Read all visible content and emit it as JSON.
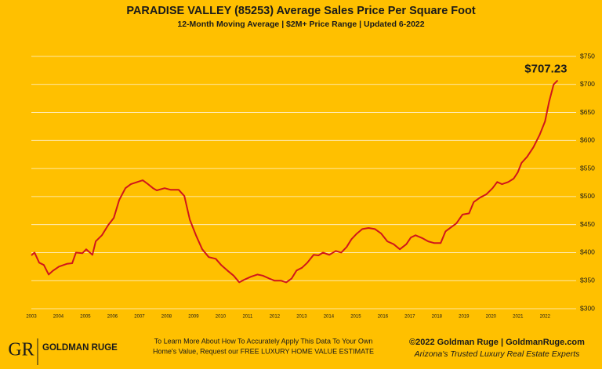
{
  "chart_data": {
    "type": "line",
    "title": "PARADISE VALLEY (85253) Average Sales Price Per Square Foot",
    "subtitle": "12-Month Moving Average | $2M+ Price Range | Updated 6-2022",
    "annotation": "$707.23",
    "x": [
      2003.0,
      2003.12,
      2003.29,
      2003.46,
      2003.64,
      2003.81,
      2004.02,
      2004.31,
      2004.51,
      2004.65,
      2004.89,
      2005.03,
      2005.26,
      2005.38,
      2005.61,
      2005.84,
      2006.05,
      2006.25,
      2006.48,
      2006.68,
      2006.92,
      2007.12,
      2007.29,
      2007.5,
      2007.64,
      2007.93,
      2008.16,
      2008.45,
      2008.66,
      2008.86,
      2009.09,
      2009.32,
      2009.56,
      2009.82,
      2010.02,
      2010.25,
      2010.48,
      2010.69,
      2010.89,
      2011.12,
      2011.36,
      2011.56,
      2011.79,
      2011.99,
      2012.23,
      2012.43,
      2012.63,
      2012.81,
      2013.01,
      2013.21,
      2013.44,
      2013.62,
      2013.79,
      2014.02,
      2014.26,
      2014.46,
      2014.66,
      2014.84,
      2015.04,
      2015.24,
      2015.47,
      2015.71,
      2015.94,
      2016.17,
      2016.4,
      2016.63,
      2016.87,
      2017.04,
      2017.21,
      2017.45,
      2017.68,
      2017.91,
      2018.14,
      2018.32,
      2018.52,
      2018.72,
      2018.95,
      2019.19,
      2019.36,
      2019.59,
      2019.83,
      2020.06,
      2020.23,
      2020.41,
      2020.64,
      2020.84,
      2020.99,
      2021.13,
      2021.34,
      2021.57,
      2021.8,
      2022.0,
      2022.15,
      2022.32,
      2022.47
    ],
    "series": [
      {
        "name": "Average Sales Price Per Square Foot",
        "color": "#d0161b",
        "values": [
          395,
          400,
          382,
          378,
          361,
          368,
          375,
          380,
          381,
          400,
          399,
          406,
          396,
          420,
          431,
          449,
          462,
          494,
          515,
          522,
          526,
          529,
          523,
          515,
          511,
          515,
          512,
          512,
          501,
          459,
          431,
          406,
          392,
          389,
          378,
          368,
          359,
          347,
          352,
          357,
          361,
          359,
          354,
          350,
          350,
          347,
          354,
          368,
          373,
          382,
          396,
          395,
          400,
          396,
          403,
          400,
          410,
          424,
          434,
          442,
          444,
          442,
          434,
          420,
          415,
          406,
          415,
          427,
          431,
          426,
          420,
          417,
          417,
          438,
          445,
          452,
          468,
          470,
          490,
          498,
          504,
          515,
          526,
          522,
          526,
          532,
          543,
          560,
          571,
          588,
          610,
          634,
          669,
          700,
          707.23
        ]
      }
    ],
    "xlim": [
      2003,
      2022.6
    ],
    "xticks": [
      2003,
      2004,
      2005,
      2006,
      2007,
      2008,
      2009,
      2010,
      2011,
      2012,
      2013,
      2014,
      2015,
      2016,
      2017,
      2018,
      2019,
      2020,
      2021,
      2022
    ],
    "ylim": [
      300,
      750
    ],
    "yticks": [
      {
        "value": 300,
        "label": "$300"
      },
      {
        "value": 350,
        "label": "$350"
      },
      {
        "value": 400,
        "label": "$400"
      },
      {
        "value": 450,
        "label": "$450"
      },
      {
        "value": 500,
        "label": "$500"
      },
      {
        "value": 550,
        "label": "$550"
      },
      {
        "value": 600,
        "label": "$600"
      },
      {
        "value": 650,
        "label": "$650"
      },
      {
        "value": 700,
        "label": "$700"
      },
      {
        "value": 750,
        "label": "$750"
      }
    ],
    "grid": true
  },
  "footer": {
    "logo": "GOLDMAN RUGE",
    "logo_mark": "GR",
    "cta": [
      "To Learn More About How To Accurately Apply This Data To Your Own",
      "Home's Value, Request our FREE LUXURY HOME VALUE ESTIMATE"
    ],
    "copyright": "©2022 Goldman Ruge  |  GoldmanRuge.com",
    "tagline": "Arizona's Trusted Luxury Real Estate Experts"
  }
}
